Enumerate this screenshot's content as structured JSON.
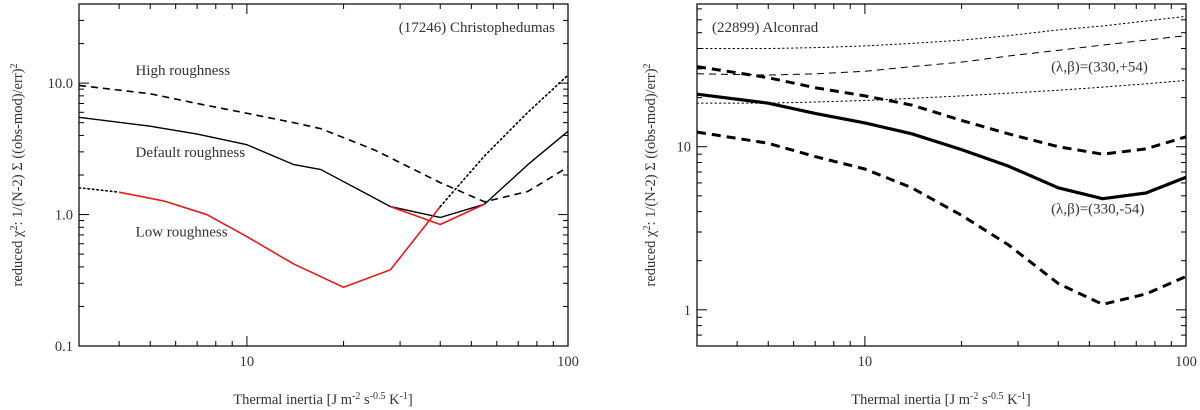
{
  "chart_data": [
    {
      "type": "line",
      "title": "(17246) Christophedumas",
      "xlabel_main": "Thermal inertia [J m",
      "xlabel_sup1": "-2",
      "xlabel_mid1": " s",
      "xlabel_sup2": "-0.5",
      "xlabel_mid2": " K",
      "xlabel_sup3": "-1",
      "xlabel_end": "]",
      "ylabel_pre": "reduced χ",
      "ylabel_sup": "2",
      "ylabel_post": ": 1/(N-2) Σ ((obs-mod)/err)",
      "ylabel_sup2": "2",
      "xscale": "log",
      "yscale": "log",
      "xlim": [
        3,
        100
      ],
      "ylim": [
        0.1,
        40
      ],
      "xticks": [
        {
          "value": 10,
          "label": "10"
        },
        {
          "value": 100,
          "label": "100"
        }
      ],
      "yticks": [
        {
          "value": 0.1,
          "label": "0.1"
        },
        {
          "value": 1,
          "label": "1.0"
        },
        {
          "value": 10,
          "label": "10.0"
        }
      ],
      "annotations": [
        {
          "text": "High roughness",
          "x": 4.5,
          "y": 11.5
        },
        {
          "text": "Default roughness",
          "x": 4.5,
          "y": 2.75
        },
        {
          "text": "Low roughness",
          "x": 4.5,
          "y": 0.68
        }
      ],
      "series": [
        {
          "name": "High roughness",
          "style": "dashed",
          "color": "#000000",
          "width": 1.6,
          "x": [
            3,
            5,
            7,
            10,
            14,
            17,
            25,
            40,
            55,
            75,
            100
          ],
          "y": [
            9.6,
            8.3,
            7.0,
            5.9,
            5.0,
            4.5,
            3.1,
            1.75,
            1.25,
            1.5,
            2.3
          ]
        },
        {
          "name": "Default roughness",
          "style": "solid",
          "color": "#000000",
          "width": 1.4,
          "x": [
            3,
            5,
            7,
            10,
            14,
            17,
            28,
            40,
            55,
            75,
            100
          ],
          "y": [
            5.5,
            4.7,
            4.1,
            3.4,
            2.4,
            2.2,
            1.15,
            0.95,
            1.2,
            2.4,
            4.3
          ]
        },
        {
          "name": "Low roughness (extrapolated)",
          "style": "dotted",
          "color": "#000000",
          "width": 1.6,
          "x": [
            3,
            4
          ],
          "y": [
            1.6,
            1.48
          ]
        },
        {
          "name": "Low roughness",
          "style": "solid",
          "color": "#e41a1c",
          "width": 1.6,
          "x": [
            4,
            5.5,
            7.5,
            10,
            14,
            20,
            28,
            40
          ],
          "y": [
            1.48,
            1.27,
            1.0,
            0.68,
            0.42,
            0.28,
            0.38,
            1.15
          ]
        },
        {
          "name": "Low roughness (high end)",
          "style": "solid",
          "color": "#e41a1c",
          "width": 1.6,
          "x": [
            28,
            40,
            55
          ],
          "y": [
            1.15,
            0.84,
            1.2
          ]
        },
        {
          "name": "Low roughness (extrapolated, high inertia)",
          "style": "dotted",
          "color": "#000000",
          "width": 1.6,
          "x": [
            40,
            55,
            75,
            100
          ],
          "y": [
            1.15,
            2.8,
            6.0,
            11.5
          ]
        }
      ]
    },
    {
      "type": "line",
      "title": "(22899) Alconrad",
      "xlabel_main": "Thermal inertia [J m",
      "xlabel_sup1": "-2",
      "xlabel_mid1": " s",
      "xlabel_sup2": "-0.5",
      "xlabel_mid2": " K",
      "xlabel_sup3": "-1",
      "xlabel_end": "]",
      "ylabel_pre": "reduced χ",
      "ylabel_sup": "2",
      "ylabel_post": ": 1/(N-2) Σ ((obs-mod)/err)",
      "ylabel_sup2": "2",
      "xscale": "log",
      "yscale": "log",
      "xlim": [
        3,
        100
      ],
      "ylim": [
        0.6,
        75
      ],
      "xticks": [
        {
          "value": 10,
          "label": "10"
        },
        {
          "value": 100,
          "label": "100"
        }
      ],
      "yticks": [
        {
          "value": 1,
          "label": "1"
        },
        {
          "value": 10,
          "label": "10"
        }
      ],
      "annotations": [
        {
          "text": "(λ,β)=(330,+54)",
          "x": 38,
          "y": 29
        },
        {
          "text": "(λ,β)=(330,-54)",
          "x": 38,
          "y": 3.9
        }
      ],
      "series": [
        {
          "name": "(330,+54) upper dotted",
          "style": "dotted",
          "color": "#000000",
          "width": 1.0,
          "x": [
            3,
            5,
            7,
            10,
            14,
            20,
            28,
            40,
            55,
            75,
            100
          ],
          "y": [
            40,
            40,
            40.5,
            41.5,
            43,
            45,
            48,
            52,
            55,
            59,
            63
          ]
        },
        {
          "name": "(330,+54)",
          "style": "dashed",
          "color": "#000000",
          "width": 1.0,
          "x": [
            3,
            5,
            7,
            10,
            14,
            20,
            28,
            40,
            55,
            75,
            100
          ],
          "y": [
            28,
            27.5,
            28,
            29,
            31,
            33,
            36,
            39,
            42,
            45,
            48
          ]
        },
        {
          "name": "(330,+54) lower dotted",
          "style": "dotted",
          "color": "#000000",
          "width": 1.0,
          "x": [
            3,
            5,
            7,
            10,
            14,
            20,
            28,
            40,
            55,
            75,
            100
          ],
          "y": [
            18.5,
            18.5,
            18.8,
            19.2,
            19.8,
            20.5,
            21.3,
            22.2,
            23.2,
            24.3,
            25.5
          ]
        },
        {
          "name": "(330,-54) upper dashed",
          "style": "dashed",
          "color": "#000000",
          "width": 3.0,
          "x": [
            3,
            5,
            7,
            10,
            14,
            20,
            28,
            40,
            55,
            75,
            100
          ],
          "y": [
            31,
            26.5,
            23,
            20.5,
            18,
            14.5,
            12,
            10,
            9,
            9.7,
            11.5
          ]
        },
        {
          "name": "(330,-54)",
          "style": "solid",
          "color": "#000000",
          "width": 3.2,
          "x": [
            3,
            5,
            7,
            10,
            14,
            20,
            28,
            40,
            55,
            75,
            100
          ],
          "y": [
            21,
            18.5,
            16,
            14,
            12,
            9.6,
            7.6,
            5.6,
            4.8,
            5.2,
            6.5
          ]
        },
        {
          "name": "(330,-54) lower dashed",
          "style": "dashed",
          "color": "#000000",
          "width": 3.0,
          "x": [
            3,
            5,
            7,
            10,
            14,
            20,
            28,
            40,
            55,
            75,
            100
          ],
          "y": [
            12.3,
            10.5,
            8.7,
            7.3,
            5.6,
            3.8,
            2.5,
            1.45,
            1.08,
            1.25,
            1.6
          ]
        }
      ]
    }
  ]
}
